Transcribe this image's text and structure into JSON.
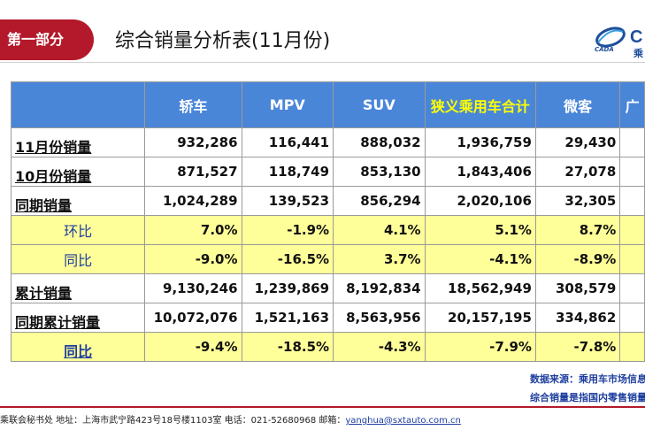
{
  "header": {
    "section_label": "第一部分",
    "title": "综合销量分析表(11月份)"
  },
  "logo": {
    "text": "CADA",
    "cn_text": "乘"
  },
  "table": {
    "columns": [
      "",
      "轿车",
      "MPV",
      "SUV",
      "狭义乘用车合计",
      "微客",
      "广"
    ],
    "rows": [
      {
        "label": "11月份销量",
        "values": [
          "932,286",
          "116,441",
          "888,032",
          "1,936,759",
          "29,430",
          ""
        ]
      },
      {
        "label": "10月份销量",
        "values": [
          "871,527",
          "118,749",
          "853,130",
          "1,843,406",
          "27,078",
          ""
        ]
      },
      {
        "label": "同期销量",
        "values": [
          "1,024,289",
          "139,523",
          "856,294",
          "2,020,106",
          "32,305",
          ""
        ]
      },
      {
        "label": "环比",
        "values": [
          "7.0%",
          "-1.9%",
          "4.1%",
          "5.1%",
          "8.7%",
          ""
        ]
      },
      {
        "label": "同比",
        "values": [
          "-9.0%",
          "-16.5%",
          "3.7%",
          "-4.1%",
          "-8.9%",
          ""
        ]
      },
      {
        "label": "累计销量",
        "values": [
          "9,130,246",
          "1,239,869",
          "8,192,834",
          "18,562,949",
          "308,579",
          ""
        ]
      },
      {
        "label": "同期累计销量",
        "values": [
          "10,072,076",
          "1,521,163",
          "8,563,956",
          "20,157,195",
          "334,862",
          ""
        ]
      },
      {
        "label": "同比",
        "values": [
          "-9.4%",
          "-18.5%",
          "-4.3%",
          "-7.9%",
          "-7.8%",
          ""
        ]
      }
    ]
  },
  "notes": {
    "source": "数据来源：乘用车市场信息",
    "definition": "综合销量是指国内零售销量"
  },
  "footer": {
    "address": "乘联会秘书处  地址：上海市武宁路423号18号楼1103室  电话：021-52680968   邮箱：",
    "email": "yanghua@sxtauto.com.cn"
  },
  "colors": {
    "brand_red": "#b3192a",
    "header_blue": "#4a86d8",
    "highlight_yellow": "#ffff99",
    "header_highlight_text": "#ffff00"
  }
}
